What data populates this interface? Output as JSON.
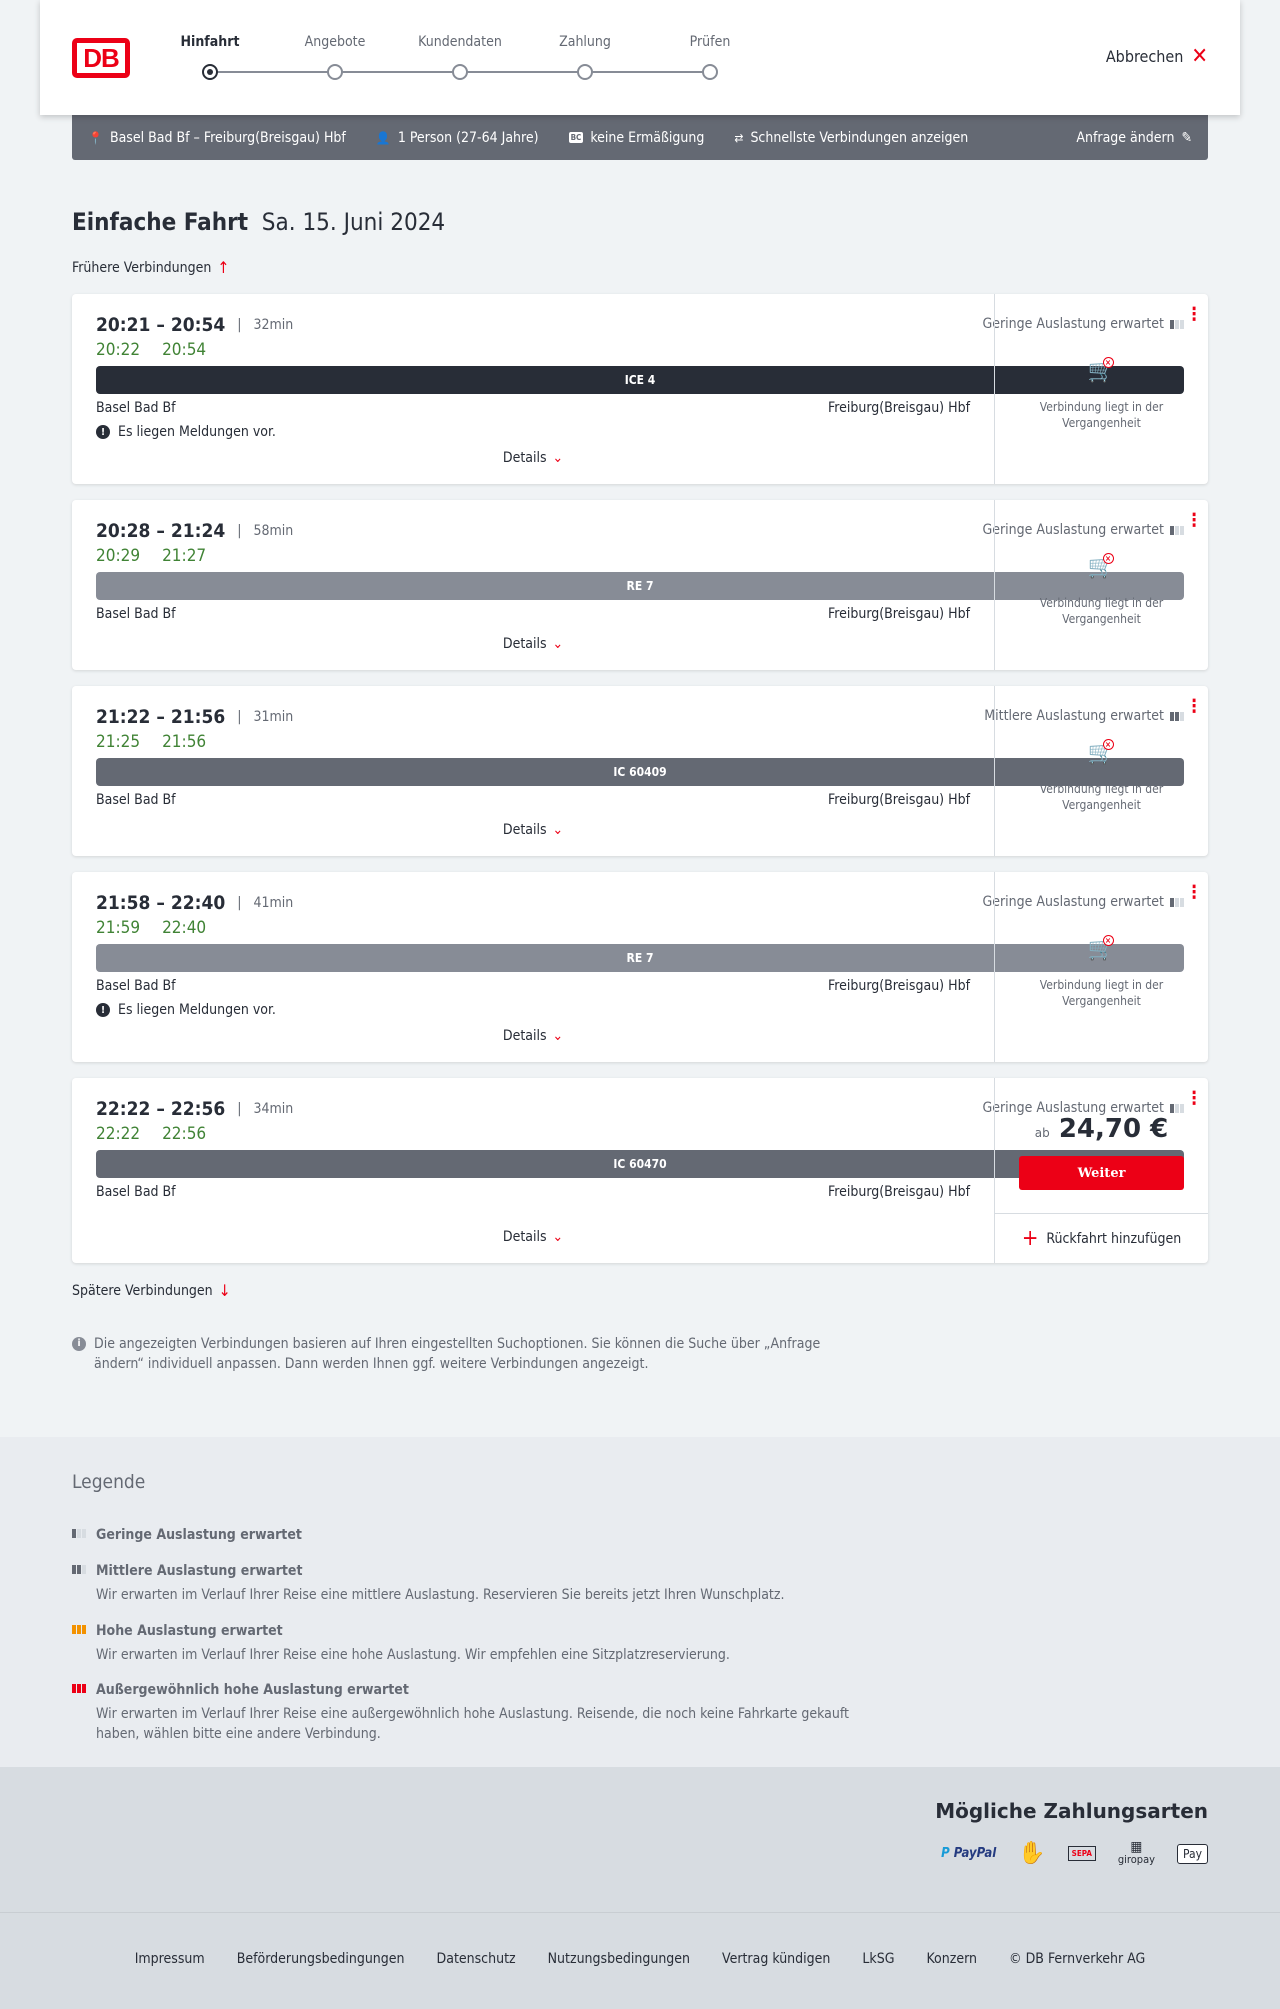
{
  "header": {
    "logo": "DB",
    "steps": [
      "Hinfahrt",
      "Angebote",
      "Kundendaten",
      "Zahlung",
      "Prüfen"
    ],
    "active_step": 0,
    "cancel": "Abbrechen"
  },
  "query": {
    "route": "Basel Bad Bf – Freiburg(Breisgau) Hbf",
    "passengers": "1 Person (27-64 Jahre)",
    "bc_badge": "BC",
    "discount": "keine Ermäßigung",
    "option": "Schnellste Verbindungen anzeigen",
    "change": "Anfrage ändern"
  },
  "title": {
    "bold": "Einfache Fahrt",
    "date": "Sa. 15. Juni 2024"
  },
  "earlier": "Frühere Verbindungen",
  "later": "Spätere Verbindungen",
  "colors": {
    "accent": "#ec0016",
    "realtime": "#408335",
    "ice": "#282d37",
    "ic": "#646973",
    "re": "#878c96"
  },
  "connections": [
    {
      "times": "20:21 – 20:54",
      "duration": "32min",
      "rt_dep": "20:22",
      "rt_arr": "20:54",
      "load": "Geringe Auslastung erwartet",
      "load_level": 1,
      "train": "ICE 4",
      "train_type": "ice",
      "from": "Basel Bad Bf",
      "to": "Freiburg(Breisgau) Hbf",
      "message": "Es liegen Meldungen vor.",
      "details": "Details",
      "status": "Verbindung liegt in der Vergangenheit"
    },
    {
      "times": "20:28 – 21:24",
      "duration": "58min",
      "rt_dep": "20:29",
      "rt_arr": "21:27",
      "load": "Geringe Auslastung erwartet",
      "load_level": 1,
      "train": "RE 7",
      "train_type": "re",
      "from": "Basel Bad Bf",
      "to": "Freiburg(Breisgau) Hbf",
      "details": "Details",
      "status": "Verbindung liegt in der Vergangenheit"
    },
    {
      "times": "21:22 – 21:56",
      "duration": "31min",
      "rt_dep": "21:25",
      "rt_arr": "21:56",
      "load": "Mittlere Auslastung erwartet",
      "load_level": 2,
      "train": "IC 60409",
      "train_type": "ic",
      "from": "Basel Bad Bf",
      "to": "Freiburg(Breisgau) Hbf",
      "details": "Details",
      "status": "Verbindung liegt in der Vergangenheit"
    },
    {
      "times": "21:58 – 22:40",
      "duration": "41min",
      "rt_dep": "21:59",
      "rt_arr": "22:40",
      "load": "Geringe Auslastung erwartet",
      "load_level": 1,
      "train": "RE 7",
      "train_type": "re",
      "from": "Basel Bad Bf",
      "to": "Freiburg(Breisgau) Hbf",
      "message": "Es liegen Meldungen vor.",
      "details": "Details",
      "status": "Verbindung liegt in der Vergangenheit"
    },
    {
      "times": "22:22 – 22:56",
      "duration": "34min",
      "rt_dep": "22:22",
      "rt_arr": "22:56",
      "load": "Geringe Auslastung erwartet",
      "load_level": 1,
      "train": "IC 60470",
      "train_type": "ic",
      "from": "Basel Bad Bf",
      "to": "Freiburg(Breisgau) Hbf",
      "details": "Details",
      "price_prefix": "ab",
      "price": "24,70 €",
      "button": "Weiter",
      "return": "Rückfahrt hinzufügen"
    }
  ],
  "info": "Die angezeigten Verbindungen basieren auf Ihren eingestellten Suchoptionen. Sie können die Suche über „Anfrage ändern“ individuell anpassen. Dann werden Ihnen ggf. weitere Verbindungen angezeigt.",
  "legend": {
    "title": "Legende",
    "items": [
      {
        "title": "Geringe Auslastung erwartet",
        "color": "#646973"
      },
      {
        "title": "Mittlere Auslastung erwartet",
        "text": "Wir erwarten im Verlauf Ihrer Reise eine mittlere Auslastung. Reservieren Sie bereits jetzt Ihren Wunschplatz.",
        "color": "#646973"
      },
      {
        "title": "Hohe Auslastung erwartet",
        "text": "Wir erwarten im Verlauf Ihrer Reise eine hohe Auslastung. Wir empfehlen eine Sitzplatzreservierung.",
        "color": "#f39200"
      },
      {
        "title": "Außergewöhnlich hohe Auslastung erwartet",
        "text": "Wir erwarten im Verlauf Ihrer Reise eine außergewöhnlich hohe Auslastung. Reisende, die noch keine Fahrkarte gekauft haben, wählen bitte eine andere Verbindung.",
        "color": "#ec0016"
      }
    ]
  },
  "payment": {
    "title": "Mögliche Zahlungsarten",
    "methods": [
      "PayPal",
      "Kreditkarte",
      "SEPA",
      "giropay",
      "Pay"
    ]
  },
  "footer": [
    "Impressum",
    "Beförderungsbedingungen",
    "Datenschutz",
    "Nutzungsbedingungen",
    "Vertrag kündigen",
    "LkSG",
    "Konzern",
    "© DB Fernverkehr AG"
  ]
}
